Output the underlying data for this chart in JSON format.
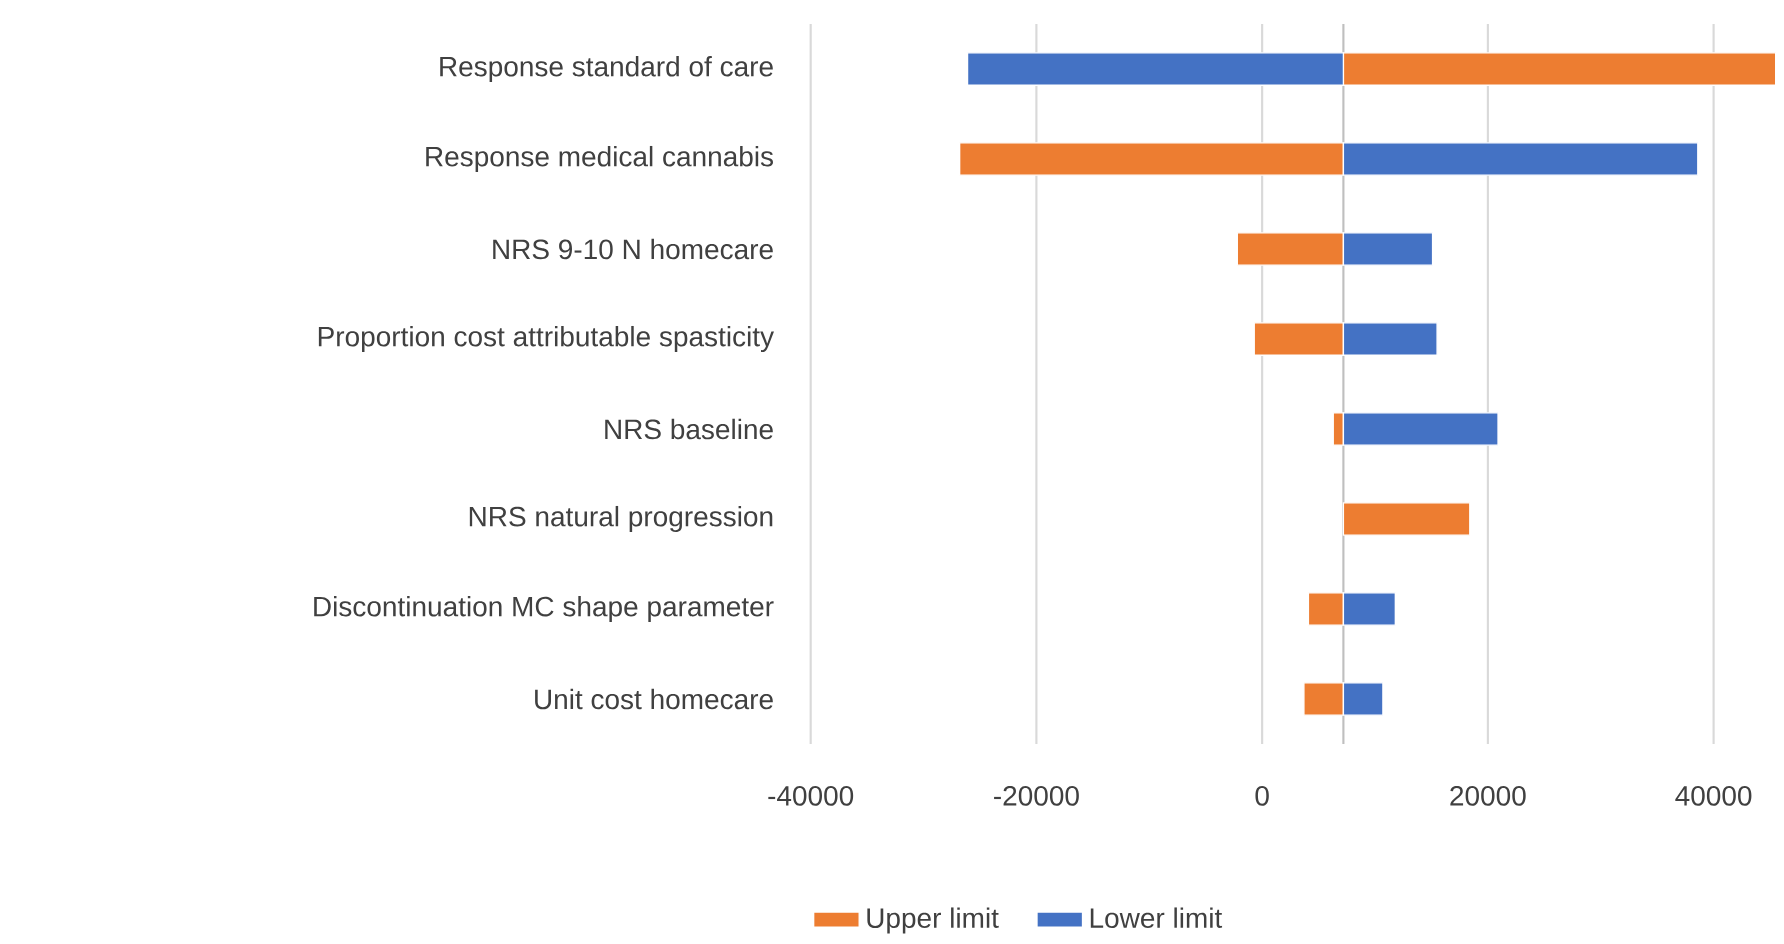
{
  "chart_data": {
    "type": "bar",
    "orientation": "horizontal",
    "categories": [
      "Response standard of care",
      "Response medical cannabis",
      "NRS 9-10 N homecare",
      "Proportion cost attributable spasticity",
      "NRS baseline",
      "NRS natural progression",
      "Discontinuation MC shape parameter",
      "Unit cost homecare"
    ],
    "series": [
      {
        "name": "Upper limit",
        "color": "#ed7d31",
        "base": [
          7200,
          7200,
          7200,
          7200,
          7200,
          7200,
          7200,
          7200
        ],
        "values": [
          38300,
          -34000,
          -9400,
          -7900,
          -900,
          11200,
          -3100,
          -3500
        ]
      },
      {
        "name": "Lower limit",
        "color": "#4472c4",
        "base": [
          7200,
          7200,
          7200,
          7200,
          7200,
          null,
          7200,
          7200
        ],
        "values": [
          -33300,
          31400,
          7900,
          8300,
          13700,
          null,
          4600,
          3500
        ]
      }
    ],
    "xlim": [
      -40000,
      46000
    ],
    "xticks": [
      -40000,
      -20000,
      0,
      20000,
      40000
    ],
    "ref_lines": [
      {
        "axis": "x",
        "value": 7200,
        "color": "#bfbfbf"
      }
    ],
    "grid": "x",
    "legend": "bottom"
  }
}
